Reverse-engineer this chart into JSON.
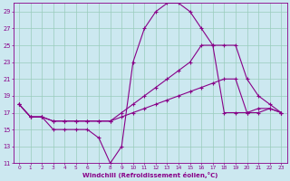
{
  "title": "",
  "xlabel": "Windchill (Refroidissement éolien,°C)",
  "bg_color": "#cce8f0",
  "grid_color": "#99ccbb",
  "line_color": "#880088",
  "xlim": [
    -0.5,
    23.5
  ],
  "ylim": [
    11,
    30
  ],
  "yticks": [
    11,
    13,
    15,
    17,
    19,
    21,
    23,
    25,
    27,
    29
  ],
  "xticks": [
    0,
    1,
    2,
    3,
    4,
    5,
    6,
    7,
    8,
    9,
    10,
    11,
    12,
    13,
    14,
    15,
    16,
    17,
    18,
    19,
    20,
    21,
    22,
    23
  ],
  "line1_x": [
    0,
    1,
    2,
    3,
    4,
    5,
    6,
    7,
    8,
    9,
    10,
    11,
    12,
    13,
    14,
    15,
    16,
    17,
    18,
    19,
    20,
    21,
    22,
    23
  ],
  "line1_y": [
    18,
    16.5,
    16.5,
    16,
    16,
    16,
    16,
    16,
    16,
    17,
    18,
    19,
    20,
    21,
    22,
    23,
    25,
    25,
    25,
    25,
    21,
    19,
    18,
    17
  ],
  "line2_x": [
    0,
    1,
    2,
    3,
    4,
    5,
    6,
    7,
    8,
    9,
    10,
    11,
    12,
    13,
    14,
    15,
    16,
    17,
    18,
    19,
    20,
    21,
    22,
    23
  ],
  "line2_y": [
    18,
    16.5,
    16.5,
    16,
    16,
    16,
    16,
    16,
    16,
    16.5,
    17,
    17.5,
    18,
    18.5,
    19,
    19.5,
    20,
    20.5,
    21,
    21,
    17,
    17.5,
    17.5,
    17
  ],
  "line3_x": [
    0,
    1,
    2,
    3,
    4,
    5,
    6,
    7,
    8,
    9,
    10,
    11,
    12,
    13,
    14,
    15,
    16,
    17,
    18,
    19,
    20,
    21,
    22,
    23
  ],
  "line3_y": [
    18,
    16.5,
    16.5,
    15,
    15,
    15,
    15,
    14,
    11,
    13,
    23,
    27,
    29,
    30,
    30,
    29,
    27,
    25,
    17,
    17,
    17,
    17,
    17.5,
    17
  ]
}
